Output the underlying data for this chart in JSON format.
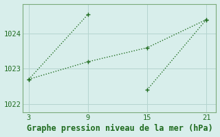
{
  "line1_x": [
    3,
    9
  ],
  "line1_y": [
    1022.7,
    1024.55
  ],
  "line2_x": [
    3,
    9,
    15,
    21
  ],
  "line2_y": [
    1022.7,
    1023.2,
    1023.6,
    1024.4
  ],
  "line3_x": [
    15,
    21
  ],
  "line3_y": [
    1022.4,
    1024.4
  ],
  "line_color": "#1e6b1e",
  "marker": "+",
  "marker_size": 5,
  "background_color": "#d8eeeb",
  "grid_color": "#b4d4cf",
  "title": "Graphe pression niveau de la mer (hPa)",
  "title_color": "#1e6b1e",
  "title_fontsize": 8.5,
  "xlim": [
    2.4,
    22.0
  ],
  "ylim": [
    1021.75,
    1024.85
  ],
  "xticks": [
    3,
    9,
    15,
    21
  ],
  "yticks": [
    1022,
    1023,
    1024
  ],
  "tick_color": "#1e6b1e",
  "tick_fontsize": 7.5,
  "spine_color": "#7aaa7a"
}
